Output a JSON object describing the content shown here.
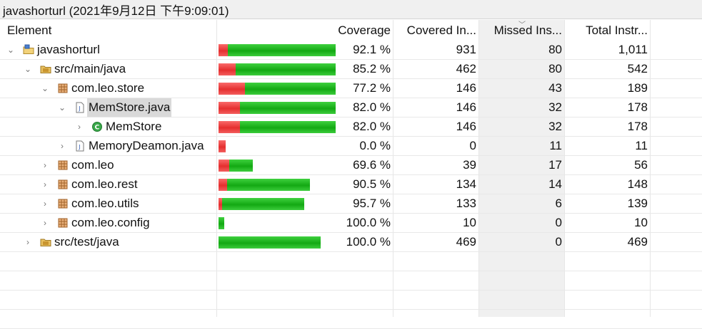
{
  "window": {
    "title": "javashorturl (2021年9月12日 下午9:09:01)"
  },
  "columns": {
    "element": "Element",
    "coverage": "Coverage",
    "covered": "Covered In...",
    "missed": "Missed Ins...",
    "total": "Total Instr..."
  },
  "rows": [
    {
      "name": "javashorturl",
      "depth": 0,
      "expander": "expanded",
      "icon": "java-project-icon",
      "coverage": "92.1 %",
      "covered": "931",
      "missed": "80",
      "total": "1,011",
      "covered_fraction": 0.921,
      "bar_scale": 1.0
    },
    {
      "name": "src/main/java",
      "depth": 1,
      "expander": "expanded",
      "icon": "source-folder-icon",
      "coverage": "85.2 %",
      "covered": "462",
      "missed": "80",
      "total": "542",
      "covered_fraction": 0.852,
      "bar_scale": 1.0
    },
    {
      "name": "com.leo.store",
      "depth": 2,
      "expander": "expanded",
      "icon": "package-icon",
      "coverage": "77.2 %",
      "covered": "146",
      "missed": "43",
      "total": "189",
      "covered_fraction": 0.772,
      "bar_scale": 1.0
    },
    {
      "name": "MemStore.java",
      "depth": 3,
      "expander": "expanded",
      "icon": "java-file-icon",
      "selected": true,
      "coverage": "82.0 %",
      "covered": "146",
      "missed": "32",
      "total": "178",
      "covered_fraction": 0.82,
      "bar_scale": 1.0
    },
    {
      "name": "MemStore",
      "depth": 4,
      "expander": "collapsed",
      "icon": "class-icon",
      "coverage": "82.0 %",
      "covered": "146",
      "missed": "32",
      "total": "178",
      "covered_fraction": 0.82,
      "bar_scale": 1.0
    },
    {
      "name": "MemoryDeamon.java",
      "depth": 3,
      "expander": "collapsed",
      "icon": "java-file-icon",
      "coverage": "0.0 %",
      "covered": "0",
      "missed": "11",
      "total": "11",
      "covered_fraction": 0.0,
      "bar_scale": 0.06
    },
    {
      "name": "com.leo",
      "depth": 2,
      "expander": "collapsed",
      "icon": "package-icon",
      "coverage": "69.6 %",
      "covered": "39",
      "missed": "17",
      "total": "56",
      "covered_fraction": 0.696,
      "bar_scale": 0.29
    },
    {
      "name": "com.leo.rest",
      "depth": 2,
      "expander": "collapsed",
      "icon": "package-icon",
      "coverage": "90.5 %",
      "covered": "134",
      "missed": "14",
      "total": "148",
      "covered_fraction": 0.905,
      "bar_scale": 0.78
    },
    {
      "name": "com.leo.utils",
      "depth": 2,
      "expander": "collapsed",
      "icon": "package-icon",
      "coverage": "95.7 %",
      "covered": "133",
      "missed": "6",
      "total": "139",
      "covered_fraction": 0.957,
      "bar_scale": 0.73
    },
    {
      "name": "com.leo.config",
      "depth": 2,
      "expander": "collapsed",
      "icon": "package-icon",
      "coverage": "100.0 %",
      "covered": "10",
      "missed": "0",
      "total": "10",
      "covered_fraction": 1.0,
      "bar_scale": 0.05
    },
    {
      "name": "src/test/java",
      "depth": 1,
      "expander": "collapsed",
      "icon": "source-folder-icon",
      "coverage": "100.0 %",
      "covered": "469",
      "missed": "0",
      "total": "469",
      "covered_fraction": 1.0,
      "bar_scale": 0.87
    }
  ],
  "colors": {
    "covered": "#22b322",
    "missed": "#ee3b3b",
    "selection": "#d9d9d9",
    "sorted_column": "#f0f0f0"
  }
}
